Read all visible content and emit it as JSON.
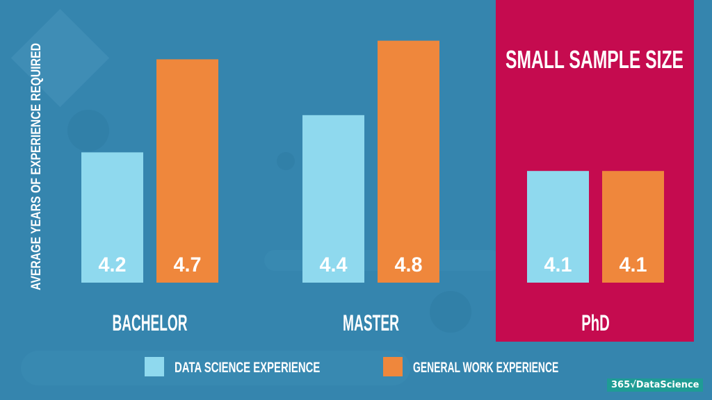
{
  "chart_data": {
    "type": "bar",
    "title": "",
    "ylabel": "AVERAGE YEARS OF EXPERIENCE REQUIRED",
    "xlabel": "",
    "categories": [
      "BACHELOR",
      "MASTER",
      "PhD"
    ],
    "series": [
      {
        "name": "DATA SCIENCE EXPERIENCE",
        "color": "#8fd9ee",
        "values": [
          4.2,
          4.4,
          4.1
        ],
        "labels": [
          "4.2",
          "4.4",
          "4.1"
        ]
      },
      {
        "name": "GENERAL WORK EXPERIENCE",
        "color": "#ef873c",
        "values": [
          4.7,
          4.8,
          4.1
        ],
        "labels": [
          "4.7",
          "4.8",
          "4.1"
        ]
      }
    ],
    "ylim": [
      3.5,
      4.9
    ],
    "grid": false,
    "legend": "bottom",
    "annotation": {
      "text": "SMALL SAMPLE SIZE",
      "category": "PhD",
      "color": "#c50b4f"
    }
  },
  "background_color": "#3585ae",
  "logo": "365√DataScience"
}
